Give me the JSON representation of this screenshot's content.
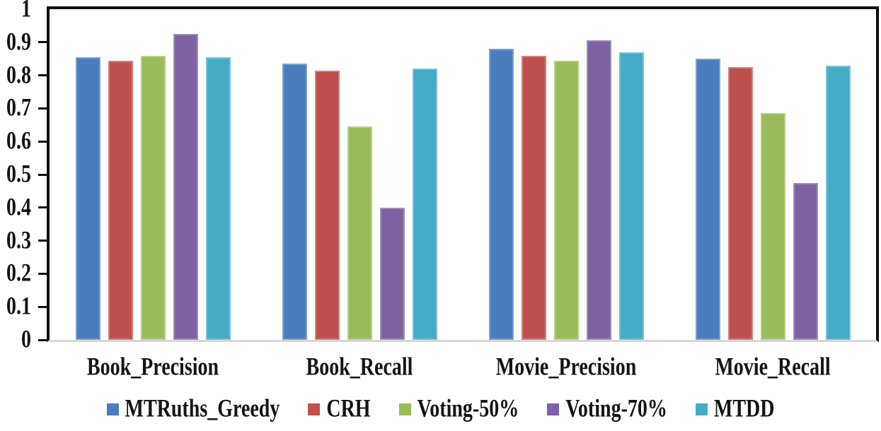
{
  "chart_data": {
    "type": "bar",
    "title": "",
    "xlabel": "",
    "ylabel": "",
    "grid": false,
    "legend_position": "bottom",
    "ylim": [
      0,
      1
    ],
    "y_ticks": [
      0,
      0.1,
      0.2,
      0.3,
      0.4,
      0.5,
      0.6,
      0.7,
      0.8,
      0.9,
      1
    ],
    "y_tick_labels": [
      "0",
      "0.1",
      "0.2",
      "0.3",
      "0.4",
      "0.5",
      "0.6",
      "0.7",
      "0.8",
      "0.9",
      "1"
    ],
    "categories": [
      "Book_Precision",
      "Book_Recall",
      "Movie_Precision",
      "Movie_Recall"
    ],
    "series": [
      {
        "name": "MTRuths_Greedy",
        "color": "#4a7dbb",
        "values": [
          0.855,
          0.835,
          0.88,
          0.85
        ]
      },
      {
        "name": "CRH",
        "color": "#c0504d",
        "values": [
          0.845,
          0.815,
          0.86,
          0.825
        ]
      },
      {
        "name": "Voting-50%",
        "color": "#9abb59",
        "values": [
          0.86,
          0.645,
          0.845,
          0.685
        ]
      },
      {
        "name": "Voting-70%",
        "color": "#7e62a3",
        "values": [
          0.925,
          0.4,
          0.905,
          0.475
        ]
      },
      {
        "name": "MTDD",
        "color": "#44abc7",
        "values": [
          0.855,
          0.82,
          0.87,
          0.83
        ]
      }
    ],
    "frame_color": "#0e0e0e",
    "baseline_color": "#d7d7d7",
    "background_color": "#ffffff"
  }
}
